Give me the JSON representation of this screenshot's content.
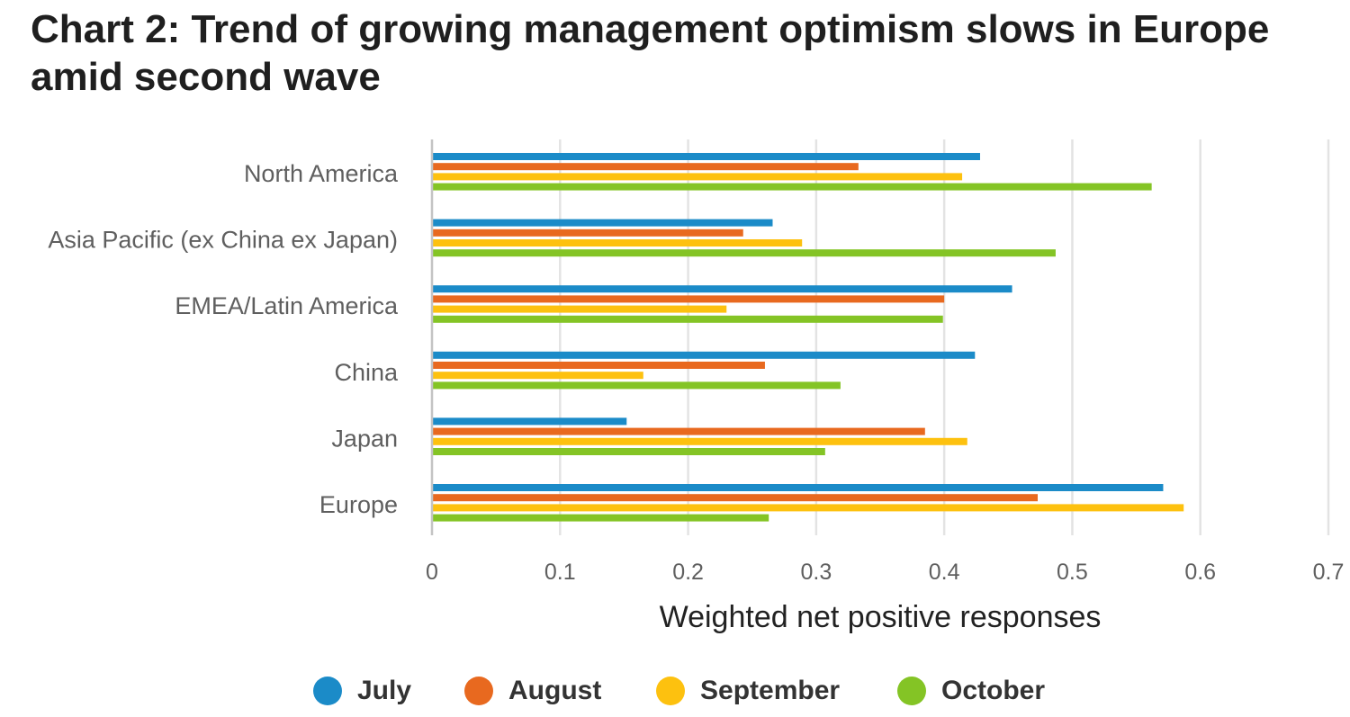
{
  "chart_data": {
    "type": "bar",
    "orientation": "horizontal",
    "title": "Chart 2: Trend of growing management optimism slows in Europe amid second wave",
    "xlabel": "Weighted net positive responses",
    "ylabel": "",
    "xlim": [
      0,
      0.7
    ],
    "xticks": [
      "0",
      "0.1",
      "0.2",
      "0.3",
      "0.4",
      "0.5",
      "0.6",
      "0.7"
    ],
    "grid": true,
    "legend_position": "bottom",
    "categories": [
      "North America",
      "Asia Pacific (ex China ex Japan)",
      "EMEA/Latin America",
      "China",
      "Japan",
      "Europe"
    ],
    "series": [
      {
        "name": "July",
        "color": "#1b8bc8",
        "values": [
          0.428,
          0.266,
          0.453,
          0.424,
          0.152,
          0.571
        ]
      },
      {
        "name": "August",
        "color": "#e8691f",
        "values": [
          0.333,
          0.243,
          0.4,
          0.26,
          0.385,
          0.473
        ]
      },
      {
        "name": "September",
        "color": "#fdc10f",
        "values": [
          0.414,
          0.289,
          0.23,
          0.165,
          0.418,
          0.587
        ]
      },
      {
        "name": "October",
        "color": "#84c425",
        "values": [
          0.562,
          0.487,
          0.399,
          0.319,
          0.307,
          0.263
        ]
      }
    ]
  }
}
